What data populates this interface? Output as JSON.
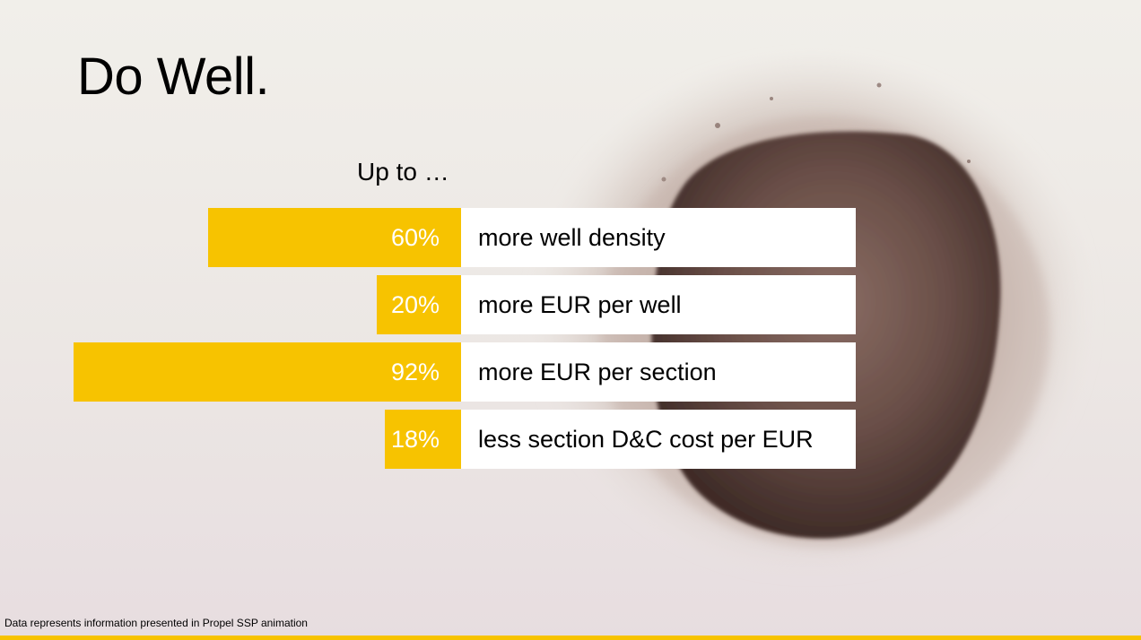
{
  "slide": {
    "title": "Do Well.",
    "subtitle": "Up to …",
    "footnote": "Data represents information presented in Propel SSP animation"
  },
  "colors": {
    "accent": "#f7c300",
    "value_text": "#ffffff",
    "label_bg": "#ffffff"
  },
  "chart_data": {
    "type": "bar",
    "orientation": "horizontal",
    "categories": [
      "more well density",
      "more EUR per well",
      "more EUR per section",
      "less section D&C cost per EUR"
    ],
    "values": [
      60,
      20,
      92,
      18
    ],
    "value_labels": [
      "60%",
      "20%",
      "92%",
      "18%"
    ],
    "xlim": [
      0,
      100
    ],
    "grid": false,
    "legend": "none"
  }
}
